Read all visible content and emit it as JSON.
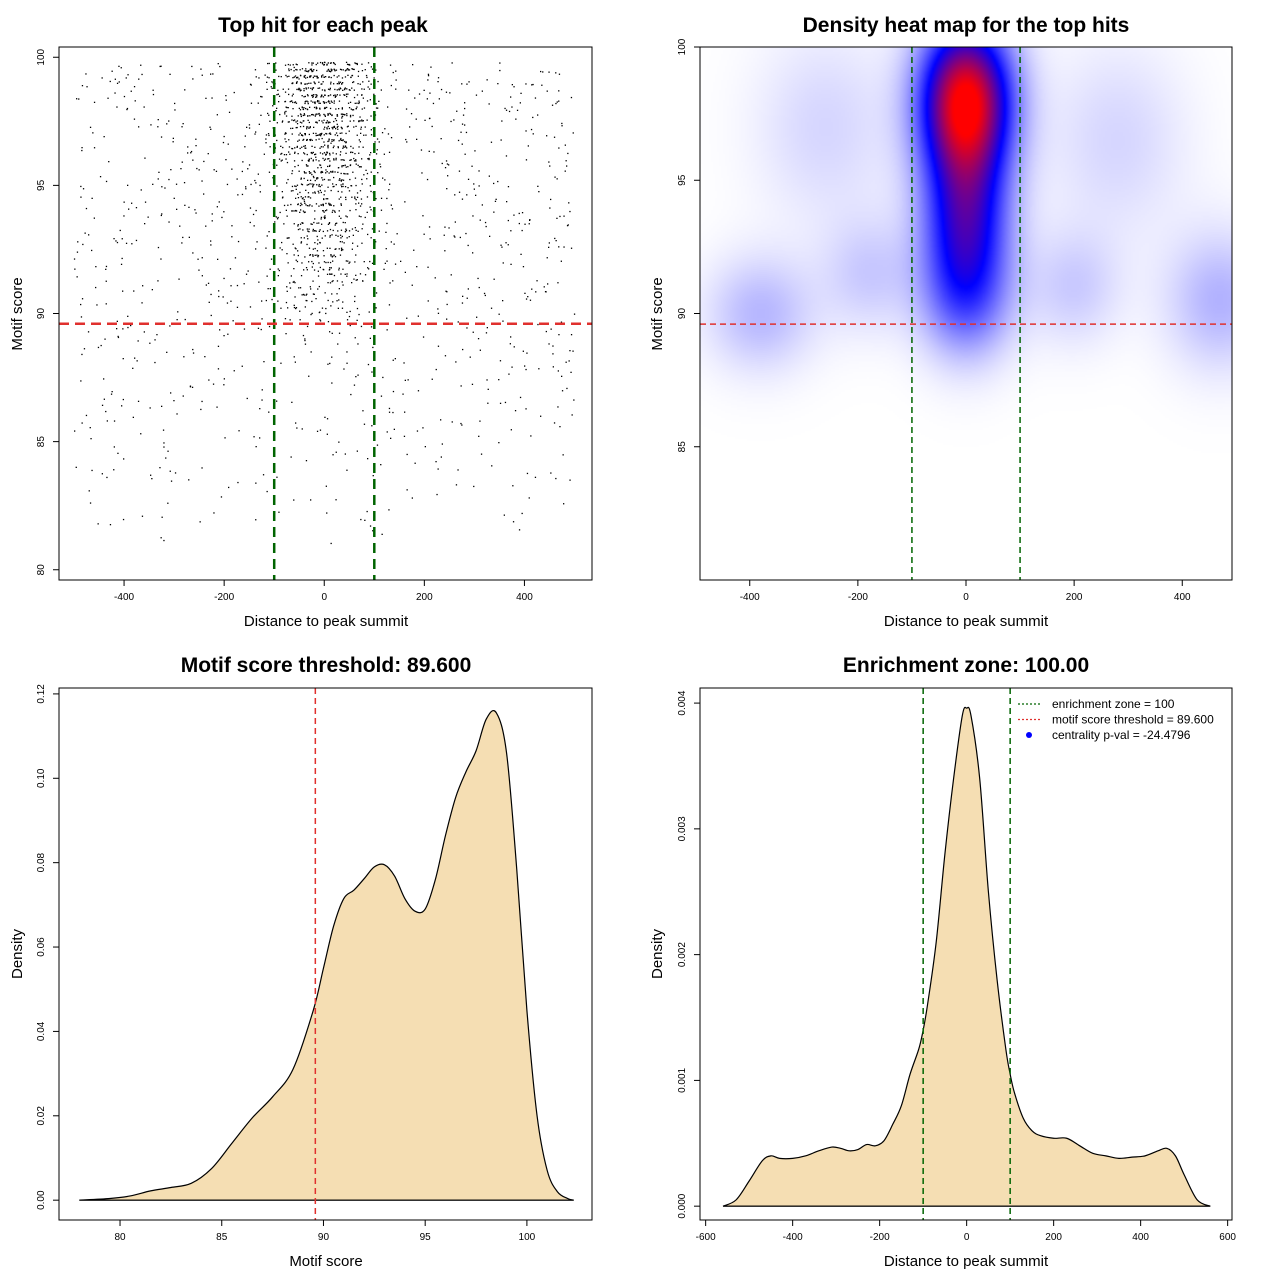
{
  "chart_data": [
    {
      "id": "scatter",
      "type": "scatter",
      "title": "Top hit for each peak",
      "xlabel": "Distance to peak summit",
      "ylabel": "Motif score",
      "xlim": [
        -530,
        535
      ],
      "ylim": [
        79.6,
        100.4
      ],
      "xticks": [
        -400,
        -200,
        0,
        200,
        400
      ],
      "xtick_labels": [
        "-400",
        "-200",
        "0",
        "200",
        "400"
      ],
      "yticks": [
        80,
        85,
        90,
        95,
        100
      ],
      "ytick_labels": [
        "80",
        "85",
        "90",
        "95",
        "100"
      ],
      "vlines": [
        -100,
        100
      ],
      "hline": 89.6,
      "colors": {
        "points": "#000000",
        "vline": "#006400",
        "hline": "#e0302e"
      },
      "n_points": 2200,
      "background": {
        "x_range": [
          -500,
          500
        ],
        "y_range": [
          80.2,
          99.8
        ],
        "density_note": "sparse, denser above 86"
      },
      "core": {
        "x_center": 0,
        "x_sd": 55,
        "y_range": [
          88.5,
          99.9
        ],
        "concentration": "upper"
      }
    },
    {
      "id": "heatmap",
      "type": "heatmap",
      "title": "Density heat map for the top hits",
      "xlabel": "Distance to peak summit",
      "ylabel": "Motif score",
      "xlim": [
        -492,
        492
      ],
      "ylim": [
        80.0,
        100.0
      ],
      "xticks": [
        -400,
        -200,
        0,
        200,
        400
      ],
      "xtick_labels": [
        "-400",
        "-200",
        "0",
        "200",
        "400"
      ],
      "yticks": [
        85,
        90,
        95,
        100
      ],
      "ytick_labels": [
        "85",
        "90",
        "95",
        "100"
      ],
      "vlines": [
        -100,
        100
      ],
      "hline": 89.6,
      "colors": {
        "low": "#ffffff",
        "mid": "#0000ff",
        "high": "#ff0000",
        "vline": "#006400",
        "hline": "#e0302e"
      },
      "hotspots": [
        {
          "x": 0,
          "y": 98.0,
          "sx": 58,
          "sy": 2.0,
          "weight": 1.0
        },
        {
          "x": 0,
          "y": 93.5,
          "sx": 55,
          "sy": 2.2,
          "weight": 0.55
        },
        {
          "x": 0,
          "y": 90.5,
          "sx": 60,
          "sy": 1.6,
          "weight": 0.22
        },
        {
          "x": -380,
          "y": 90.0,
          "sx": 70,
          "sy": 1.5,
          "weight": 0.14
        },
        {
          "x": 470,
          "y": 90.5,
          "sx": 70,
          "sy": 1.8,
          "weight": 0.15
        },
        {
          "x": -260,
          "y": 97.0,
          "sx": 90,
          "sy": 2.5,
          "weight": 0.08
        },
        {
          "x": 280,
          "y": 96.5,
          "sx": 90,
          "sy": 2.5,
          "weight": 0.08
        },
        {
          "x": -180,
          "y": 91.5,
          "sx": 60,
          "sy": 1.5,
          "weight": 0.1
        },
        {
          "x": 200,
          "y": 91.0,
          "sx": 60,
          "sy": 1.5,
          "weight": 0.1
        }
      ]
    },
    {
      "id": "score_density",
      "type": "area",
      "title": "Motif score threshold: 89.600",
      "xlabel": "Motif score",
      "ylabel": "Density",
      "xlim": [
        77.0,
        103.2
      ],
      "ylim": [
        -0.0047,
        0.1214
      ],
      "xticks": [
        80,
        85,
        90,
        95,
        100
      ],
      "xtick_labels": [
        "80",
        "85",
        "90",
        "95",
        "100"
      ],
      "yticks": [
        0.0,
        0.02,
        0.04,
        0.06,
        0.08,
        0.1,
        0.12
      ],
      "ytick_labels": [
        "0.00",
        "0.02",
        "0.04",
        "0.06",
        "0.08",
        "0.10",
        "0.12"
      ],
      "threshold": 89.6,
      "colors": {
        "fill": "#f5deb3",
        "line": "#000000",
        "threshold": "#e0302e"
      },
      "x": [
        78.0,
        79.5,
        80.5,
        81.5,
        82.5,
        83.5,
        84.5,
        85.5,
        86.5,
        87.5,
        88.5,
        89.5,
        90.0,
        90.5,
        91.0,
        91.5,
        92.0,
        92.5,
        93.0,
        93.5,
        94.0,
        94.5,
        95.0,
        95.5,
        96.0,
        96.5,
        97.0,
        97.5,
        98.0,
        98.5,
        99.0,
        99.5,
        100.0,
        100.5,
        101.0,
        101.5,
        102.0,
        102.3
      ],
      "y": [
        0.0,
        0.0004,
        0.001,
        0.0022,
        0.003,
        0.004,
        0.0075,
        0.0135,
        0.0195,
        0.0245,
        0.031,
        0.045,
        0.055,
        0.065,
        0.0715,
        0.0735,
        0.0762,
        0.079,
        0.0795,
        0.0768,
        0.0715,
        0.0685,
        0.069,
        0.076,
        0.0865,
        0.0955,
        0.1015,
        0.1065,
        0.114,
        0.1155,
        0.106,
        0.0785,
        0.045,
        0.02,
        0.007,
        0.002,
        0.0004,
        0.0
      ]
    },
    {
      "id": "distance_density",
      "type": "area",
      "title": "Enrichment zone: 100.00",
      "xlabel": "Distance to peak summit",
      "ylabel": "Density",
      "xlim": [
        -613,
        610
      ],
      "ylim": [
        -0.00011,
        0.00412
      ],
      "xticks": [
        -600,
        -400,
        -200,
        0,
        200,
        400,
        600
      ],
      "xtick_labels": [
        "-600",
        "-400",
        "-200",
        "0",
        "200",
        "400",
        "600"
      ],
      "yticks": [
        0.0,
        0.001,
        0.002,
        0.003,
        0.004
      ],
      "ytick_labels": [
        "0.000",
        "0.001",
        "0.002",
        "0.003",
        "0.004"
      ],
      "vlines": [
        -100,
        100
      ],
      "colors": {
        "fill": "#f5deb3",
        "line": "#000000",
        "vline": "#006400",
        "threshold": "#e0302e",
        "point": "#0000ff"
      },
      "x": [
        -560,
        -530,
        -500,
        -470,
        -450,
        -430,
        -400,
        -370,
        -340,
        -310,
        -290,
        -270,
        -250,
        -230,
        -210,
        -190,
        -170,
        -150,
        -130,
        -110,
        -100,
        -90,
        -70,
        -50,
        -30,
        -10,
        0,
        10,
        30,
        50,
        70,
        90,
        100,
        110,
        130,
        150,
        170,
        200,
        230,
        260,
        290,
        320,
        350,
        380,
        410,
        440,
        460,
        480,
        500,
        530,
        560
      ],
      "y": [
        0.0,
        5e-05,
        0.0002,
        0.00036,
        0.0004,
        0.00038,
        0.00038,
        0.0004,
        0.00044,
        0.00047,
        0.00046,
        0.00044,
        0.00045,
        0.00049,
        0.00048,
        0.00052,
        0.00065,
        0.0008,
        0.00105,
        0.00125,
        0.0014,
        0.0016,
        0.0021,
        0.0028,
        0.0034,
        0.0039,
        0.00396,
        0.0039,
        0.0034,
        0.0025,
        0.0018,
        0.00125,
        0.00105,
        0.0009,
        0.0007,
        0.0006,
        0.00056,
        0.00054,
        0.00054,
        0.00048,
        0.00042,
        0.0004,
        0.00038,
        0.00039,
        0.0004,
        0.00044,
        0.00046,
        0.0004,
        0.00025,
        5e-05,
        0.0
      ],
      "legend": {
        "position": "top-right",
        "items": [
          {
            "label": "enrichment zone = 100",
            "kind": "dotted-line",
            "color": "#006400"
          },
          {
            "label": "motif score threshold = 89.600",
            "kind": "dotted-line",
            "color": "#e0302e"
          },
          {
            "label": "centrality p-val = -24.4796",
            "kind": "point",
            "color": "#0000ff"
          }
        ]
      }
    }
  ]
}
